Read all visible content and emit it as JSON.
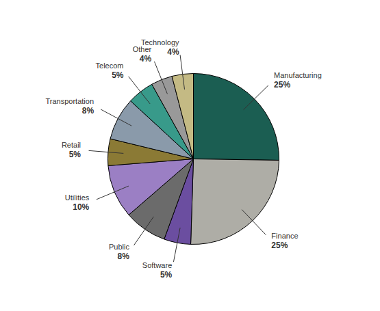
{
  "chart_data": {
    "type": "pie",
    "categories": [
      "Manufacturing",
      "Finance",
      "Software",
      "Public",
      "Utilities",
      "Retail",
      "Transportation",
      "Telecom",
      "Other",
      "Technology"
    ],
    "values": [
      25,
      25,
      5,
      8,
      10,
      5,
      8,
      5,
      4,
      4
    ],
    "value_labels": [
      "25%",
      "25%",
      "5%",
      "8%",
      "10%",
      "5%",
      "8%",
      "5%",
      "4%",
      "4%"
    ],
    "colors": [
      "#1b5e52",
      "#aeada6",
      "#6b4ea0",
      "#6b6b6b",
      "#9b7fc4",
      "#8b7a35",
      "#8a9aaa",
      "#389a8a",
      "#999999",
      "#c4ba84"
    ]
  }
}
